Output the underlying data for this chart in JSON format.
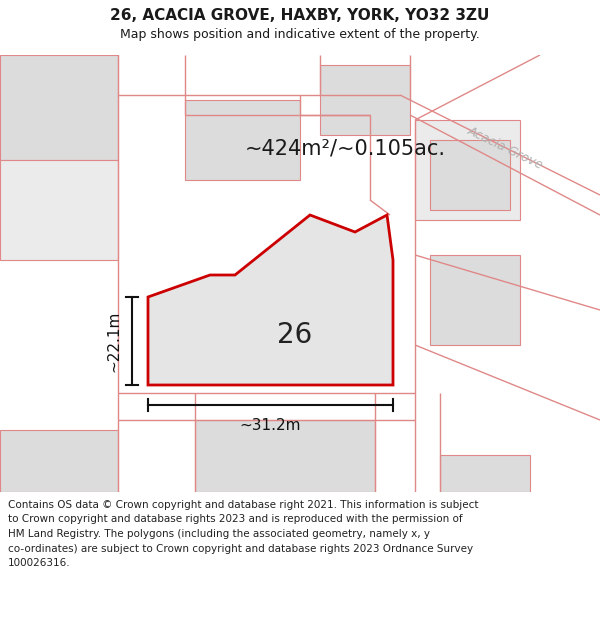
{
  "title": "26, ACACIA GROVE, HAXBY, YORK, YO32 3ZU",
  "subtitle": "Map shows position and indicative extent of the property.",
  "footer_line1": "Contains OS data © Crown copyright and database right 2021. This information is subject",
  "footer_line2": "to Crown copyright and database rights 2023 and is reproduced with the permission of",
  "footer_line3": "HM Land Registry. The polygons (including the associated geometry, namely x, y",
  "footer_line4": "co-ordinates) are subject to Crown copyright and database rights 2023 Ordnance Survey",
  "footer_line5": "100026316.",
  "area_label": "~424m²/~0.105ac.",
  "width_label": "~31.2m",
  "height_label": "~22.1m",
  "plot_number": "26",
  "road_label": "Acacia Grove",
  "map_bg": "#f2f2f2",
  "plot_fill": "#e5e5e5",
  "plot_outline": "#cc0000",
  "block_fill": "#dcdcdc",
  "block_outline": "#e08888",
  "road_line_color": "#e08888",
  "road_label_color": "#b0b0b0",
  "title_color": "#1a1a1a",
  "dim_color": "#111111",
  "footer_color": "#222222",
  "area_color": "#1a1a1a"
}
